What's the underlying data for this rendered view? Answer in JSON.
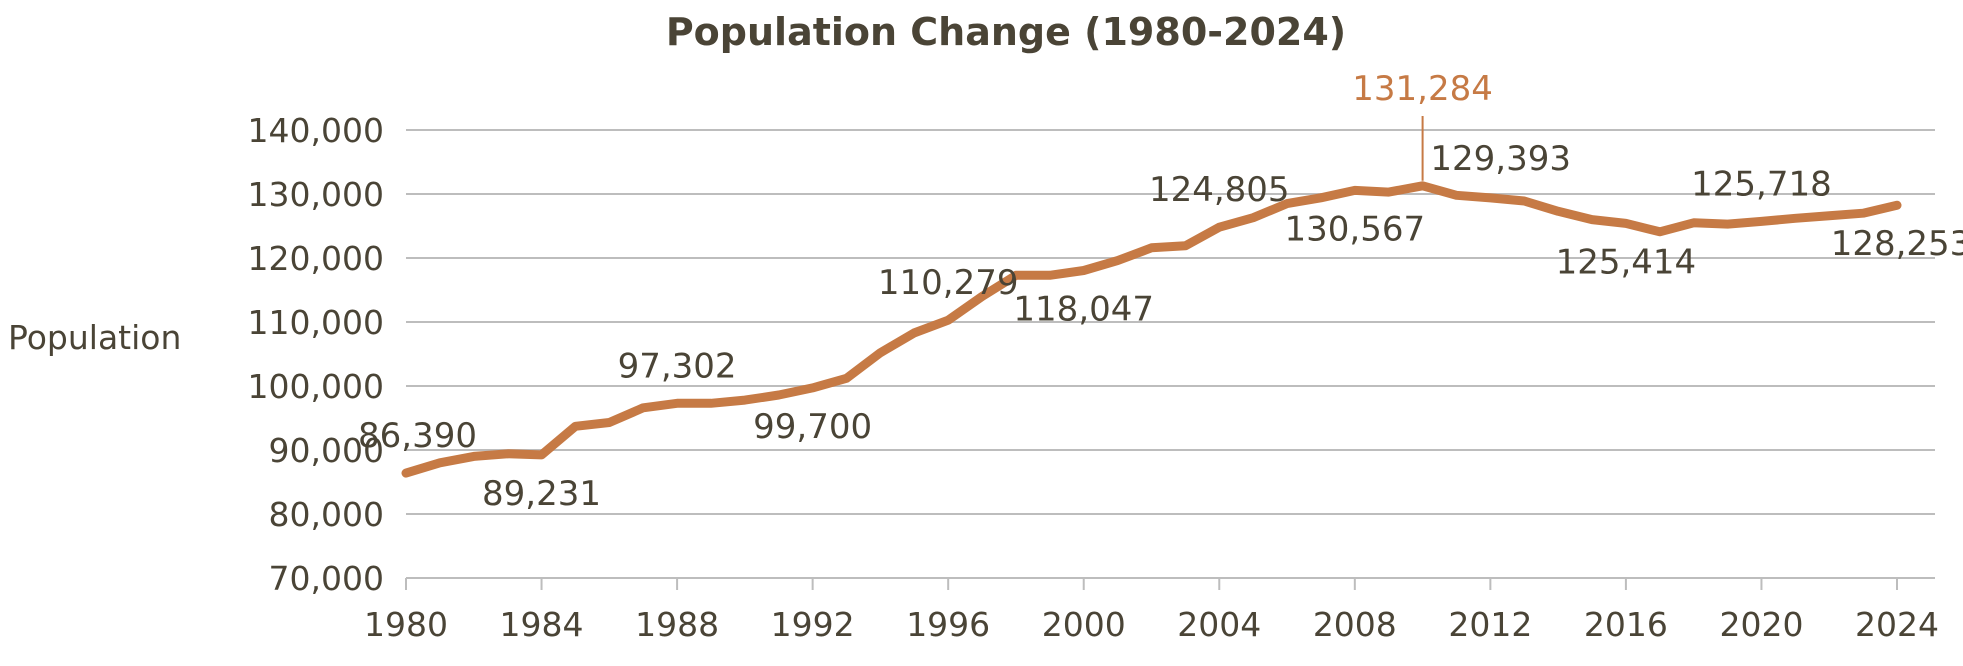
{
  "chart_data": {
    "type": "line",
    "title": "Population Change (1980-2024)",
    "xlabel": "",
    "ylabel": "Population",
    "ylim": [
      70000,
      140000
    ],
    "yticks": [
      70000,
      80000,
      90000,
      100000,
      110000,
      120000,
      130000,
      140000
    ],
    "ytick_labels": [
      "70,000",
      "80,000",
      "90,000",
      "100,000",
      "110,000",
      "120,000",
      "130,000",
      "140,000"
    ],
    "xlim": [
      1980,
      2024
    ],
    "xticks": [
      1980,
      1984,
      1988,
      1992,
      1996,
      2000,
      2004,
      2008,
      2012,
      2016,
      2020,
      2024
    ],
    "xtick_labels": [
      "1980",
      "1984",
      "1988",
      "1992",
      "1996",
      "2000",
      "2004",
      "2008",
      "2012",
      "2016",
      "2020",
      "2024"
    ],
    "grid": true,
    "color": "#c67a45",
    "series": [
      {
        "name": "Population",
        "x": [
          1980,
          1981,
          1982,
          1983,
          1984,
          1985,
          1986,
          1987,
          1988,
          1989,
          1990,
          1991,
          1992,
          1993,
          1994,
          1995,
          1996,
          1997,
          1998,
          1999,
          2000,
          2001,
          2002,
          2003,
          2004,
          2005,
          2006,
          2007,
          2008,
          2009,
          2010,
          2011,
          2012,
          2013,
          2014,
          2015,
          2016,
          2017,
          2018,
          2019,
          2020,
          2021,
          2022,
          2023,
          2024
        ],
        "values": [
          86390,
          88000,
          89000,
          89400,
          89231,
          93700,
          94300,
          96600,
          97302,
          97300,
          97800,
          98600,
          99700,
          101200,
          105200,
          108300,
          110279,
          114000,
          117300,
          117300,
          118047,
          119600,
          121600,
          121900,
          124805,
          126300,
          128500,
          129400,
          130567,
          130300,
          131284,
          129800,
          129393,
          128900,
          127300,
          126000,
          125414,
          124100,
          125500,
          125300,
          125718,
          126200,
          126600,
          127000,
          128253
        ]
      }
    ],
    "annotations": [
      {
        "year": 1980,
        "text": "86,390",
        "placement": "above"
      },
      {
        "year": 1984,
        "text": "89,231",
        "placement": "below"
      },
      {
        "year": 1988,
        "text": "97,302",
        "placement": "above"
      },
      {
        "year": 1992,
        "text": "99,700",
        "placement": "below"
      },
      {
        "year": 1996,
        "text": "110,279",
        "placement": "above"
      },
      {
        "year": 2000,
        "text": "118,047",
        "placement": "below"
      },
      {
        "year": 2004,
        "text": "124,805",
        "placement": "above"
      },
      {
        "year": 2008,
        "text": "130,567",
        "placement": "below"
      },
      {
        "year": 2010,
        "text": "131,284",
        "placement": "peak"
      },
      {
        "year": 2012,
        "text": "129,393",
        "placement": "above"
      },
      {
        "year": 2016,
        "text": "125,414",
        "placement": "below"
      },
      {
        "year": 2020,
        "text": "125,718",
        "placement": "above"
      },
      {
        "year": 2024,
        "text": "128,253",
        "placement": "below"
      }
    ]
  }
}
